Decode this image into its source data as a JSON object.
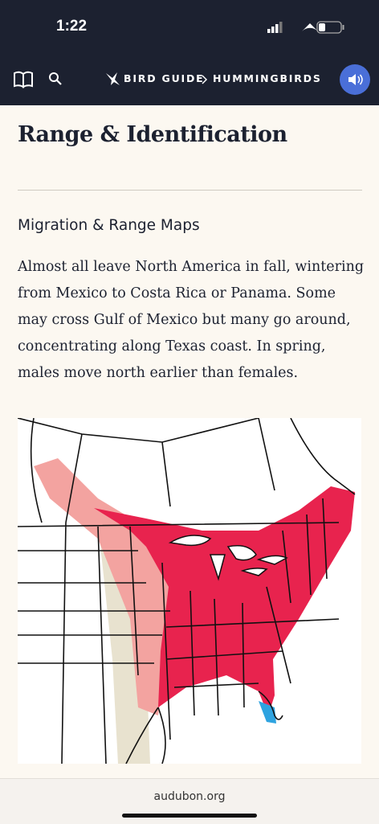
{
  "status_bar": {
    "time": "1:22"
  },
  "nav": {
    "breadcrumb": [
      "BIRD GUIDE",
      "HUMMINGBIRDS"
    ]
  },
  "article": {
    "title": "Range & Identification",
    "section_heading": "Migration & Range Maps",
    "paragraph": "Almost all leave North America in fall, wintering from Mexico to Costa Rica or Panama. Some may cross Gulf of Mexico but many go around, concentrating along Texas coast. In spring, males move north earlier than females."
  },
  "footer": {
    "url": "audubon.org"
  }
}
